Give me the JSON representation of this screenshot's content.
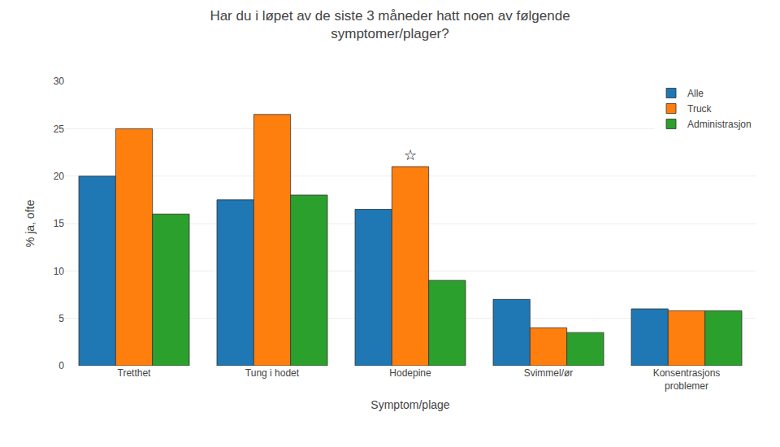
{
  "chart_data": {
    "type": "bar",
    "title": "Har du i løpet av de siste 3 måneder hatt noen av følgende\nsymptomer/plager?",
    "ylabel": "% ja, ofte",
    "xlabel": "Symptom/plage",
    "categories": [
      "Tretthet",
      "Tung i hodet",
      "Hodepine",
      "Svimmel/ør",
      "Konsentrasjons\nproblemer"
    ],
    "series": [
      {
        "name": "Alle",
        "values": [
          20,
          17.5,
          16.5,
          7,
          6
        ]
      },
      {
        "name": "Truck",
        "values": [
          25,
          26.5,
          21,
          4,
          5.8
        ]
      },
      {
        "name": "Administrasjon",
        "values": [
          16,
          18,
          9,
          3.5,
          5.8
        ]
      }
    ],
    "annotations": [
      {
        "text": "☆",
        "x": "Hodepine",
        "series": "Truck"
      }
    ],
    "ylim": [
      0,
      30
    ],
    "yticks": [
      0,
      5,
      10,
      15,
      20,
      25,
      30
    ],
    "grid": true,
    "legend": "upper right"
  }
}
